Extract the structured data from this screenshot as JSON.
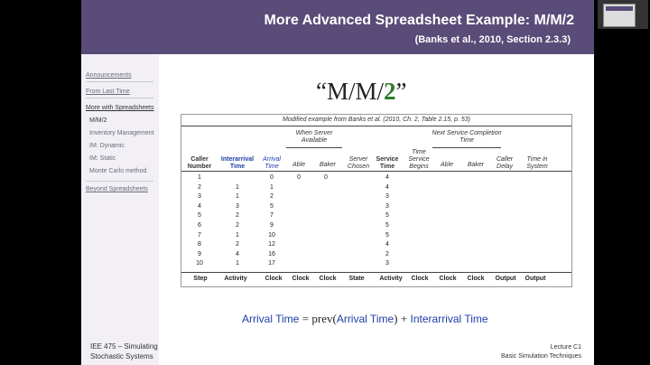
{
  "header": {
    "title": "More Advanced Spreadsheet Example: M/M/2",
    "subtitle": "(Banks et al., 2010, Section 2.3.3)"
  },
  "sidebar": {
    "items": [
      {
        "label": "Announcements"
      },
      {
        "label": "From Last Time"
      },
      {
        "label": "More with Spreadsheets"
      },
      {
        "label": "M/M/2"
      },
      {
        "label": "Inventory Management"
      },
      {
        "label": "IM: Dynamic"
      },
      {
        "label": "IM: Static"
      },
      {
        "label": "Monte Carlo method"
      },
      {
        "label": "Beyond Spreadsheets"
      }
    ],
    "footer_line1": "IEE 475 – Simulating",
    "footer_line2": "Stochastic Systems"
  },
  "big_title": {
    "prefix": "“M/M/",
    "two": "2",
    "suffix": "”"
  },
  "table": {
    "caption": "Modified example from Banks et al. (2010, Ch. 2, Table 2.15, p. 53)",
    "group_when_server_available": "When Server Available",
    "group_next_service_completion": "Next Service Completion Time",
    "headers": {
      "caller_number": "Caller Number",
      "interarrival_time": "Interarrival Time",
      "arrival_time": "Arrival Time",
      "able": "Able",
      "baker": "Baker",
      "server_chosen": "Server Chosen",
      "service_time": "Service Time",
      "time_service_begins": "Time Service Begins",
      "able2": "Able",
      "baker2": "Baker",
      "caller_delay": "Caller Delay",
      "time_in_system": "Time in System"
    },
    "rows": [
      {
        "caller": "1",
        "inter": "",
        "arrival": "0",
        "able": "0",
        "baker": "0",
        "service": "4"
      },
      {
        "caller": "2",
        "inter": "1",
        "arrival": "1",
        "able": "",
        "baker": "",
        "service": "4"
      },
      {
        "caller": "3",
        "inter": "1",
        "arrival": "2",
        "able": "",
        "baker": "",
        "service": "3"
      },
      {
        "caller": "4",
        "inter": "3",
        "arrival": "5",
        "able": "",
        "baker": "",
        "service": "3"
      },
      {
        "caller": "5",
        "inter": "2",
        "arrival": "7",
        "able": "",
        "baker": "",
        "service": "5"
      },
      {
        "caller": "6",
        "inter": "2",
        "arrival": "9",
        "able": "",
        "baker": "",
        "service": "5"
      },
      {
        "caller": "7",
        "inter": "1",
        "arrival": "10",
        "able": "",
        "baker": "",
        "service": "5"
      },
      {
        "caller": "8",
        "inter": "2",
        "arrival": "12",
        "able": "",
        "baker": "",
        "service": "4"
      },
      {
        "caller": "9",
        "inter": "4",
        "arrival": "16",
        "able": "",
        "baker": "",
        "service": "2"
      },
      {
        "caller": "10",
        "inter": "1",
        "arrival": "17",
        "able": "",
        "baker": "",
        "service": "3"
      }
    ],
    "footer": [
      "Step",
      "Activity",
      "Clock",
      "Clock",
      "Clock",
      "State",
      "Activity",
      "Clock",
      "Clock",
      "Clock",
      "Output",
      "Output"
    ]
  },
  "formula": {
    "lhs": "Arrival Time",
    "eq": "=",
    "prev": "prev(",
    "arg": "Arrival Time",
    "close": ")",
    "plus": "+",
    "rhs": "Interarrival Time"
  },
  "lecture": {
    "line1": "Lecture C1",
    "line2": "Basic Simulation Techniques"
  },
  "colors": {
    "header_bg": "#5a4c78",
    "blue": "#1d3ea6",
    "green": "#2c7a2c"
  }
}
